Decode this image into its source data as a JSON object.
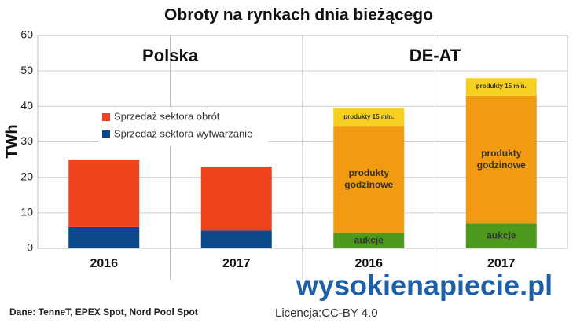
{
  "chart_data": {
    "type": "stacked_bar",
    "title": "Obroty na rynkach dnia bieżącego",
    "y_label": "TWh",
    "groups": [
      "Polska",
      "DE-AT"
    ],
    "categories": [
      "2016",
      "2017",
      "2016",
      "2017"
    ],
    "series": [
      {
        "name": "Sprzedaż sektora wytwarzanie",
        "color": "#0b4a8a",
        "values": [
          6,
          5,
          null,
          null
        ],
        "in_legend": true
      },
      {
        "name": "Sprzedaż sektora obrót",
        "color": "#f0421c",
        "values": [
          19,
          18,
          null,
          null
        ],
        "in_legend": true
      },
      {
        "name": "aukcje",
        "color": "#4e9a1e",
        "values": [
          null,
          null,
          4.5,
          7
        ],
        "in_legend": false
      },
      {
        "name": "produkty godzinowe",
        "color": "#f29a12",
        "values": [
          null,
          null,
          30,
          36
        ],
        "in_legend": false
      },
      {
        "name": "produkty 15 min.",
        "color": "#f5d020",
        "values": [
          null,
          null,
          5,
          5
        ],
        "in_legend": false
      }
    ],
    "ylim": [
      0,
      60
    ],
    "yticks": [
      0,
      10,
      20,
      30,
      40,
      50,
      60
    ],
    "grid": true,
    "source": "Dane: TenneT, EPEX Spot, Nord Pool Spot",
    "logo": "wysokienapiecie.pl",
    "license": "Licencja:CC-BY 4.0"
  }
}
